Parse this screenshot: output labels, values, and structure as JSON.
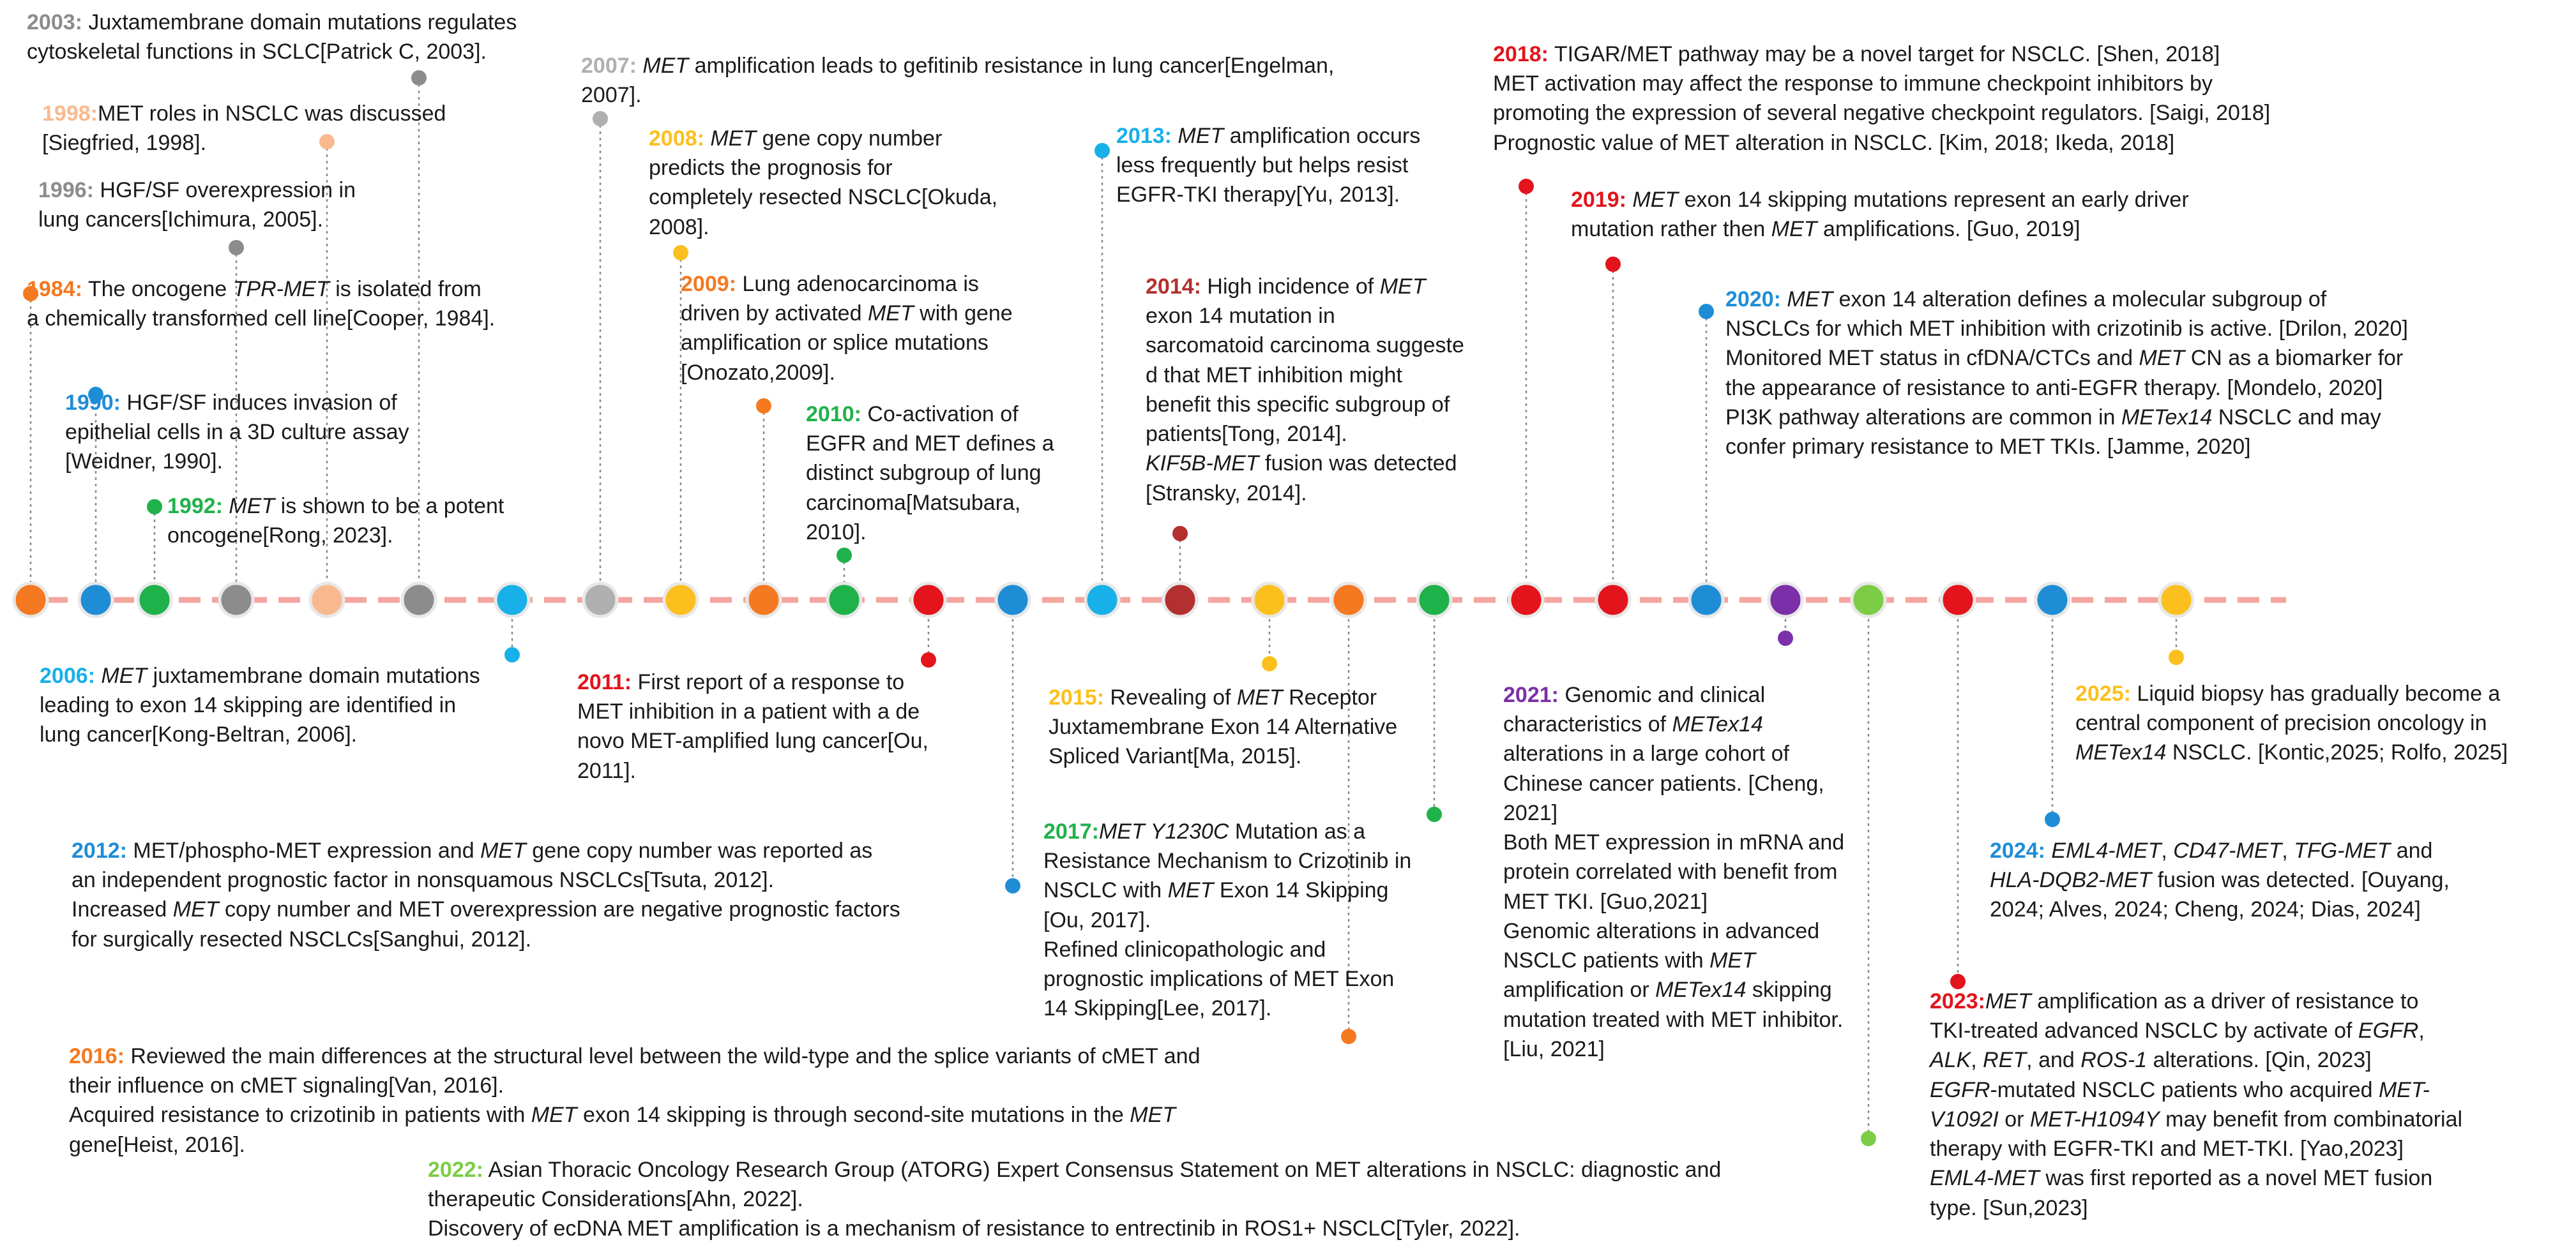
{
  "colors": {
    "axis": "#f4a5a0",
    "connector": "#8a8a8a",
    "orange": "#f47920",
    "blue": "#1f8dd6",
    "green": "#1fb24a",
    "gray": "#8c8c8c",
    "peach": "#f9b98f",
    "yellow": "#fcc01e",
    "red": "#e3141c",
    "darkred": "#b3302e",
    "cyan": "#18b0e8",
    "purple": "#7b2fa8",
    "lime": "#7ccd45",
    "lightgray": "#b0b0b0",
    "text": "#1a1a1a"
  },
  "events": [
    {
      "id": "e1984",
      "year": "1984:",
      "color": "orange",
      "lines": [
        "The oncogene <i>TPR-MET</i> is isolated from",
        "a chemically transformed cell line[Cooper, 1984]."
      ]
    },
    {
      "id": "e1990",
      "year": "1990:",
      "color": "blue",
      "lines": [
        "HGF/SF induces invasion of",
        "epithelial cells in a 3D culture assay",
        "[Weidner, 1990]."
      ]
    },
    {
      "id": "e1992",
      "year": "1992:",
      "color": "green",
      "lines": [
        "<i>MET</i> is shown to be a potent",
        "oncogene[Rong, 2023]."
      ]
    },
    {
      "id": "e1996",
      "year": "1996:",
      "color": "gray",
      "lines": [
        "HGF/SF overexpression in",
        "lung cancers[Ichimura, 2005]."
      ]
    },
    {
      "id": "e1998",
      "year": "1998:",
      "color": "peach",
      "lines": [
        "MET roles in NSCLC was discussed",
        "[Siegfried, 1998]."
      ]
    },
    {
      "id": "e2003",
      "year": "2003:",
      "color": "gray",
      "lines": [
        "Juxtamembrane domain mutations regulates",
        "cytoskeletal functions in SCLC[Patrick C, 2003]."
      ]
    },
    {
      "id": "e2006",
      "year": "2006:",
      "color": "cyan",
      "lines": [
        "<i>MET</i> juxtamembrane domain mutations",
        "leading to exon 14 skipping are identified in",
        "lung cancer[Kong-Beltran, 2006]."
      ]
    },
    {
      "id": "e2007",
      "year": "2007:",
      "color": "lightgray",
      "lines": [
        "<i>MET</i> amplification leads to gefitinib resistance in lung cancer[Engelman,",
        "2007]."
      ]
    },
    {
      "id": "e2008",
      "year": "2008:",
      "color": "yellow",
      "lines": [
        "<i>MET</i> gene copy number",
        "predicts the prognosis for",
        "completely resected NSCLC[Okuda,",
        "2008]."
      ]
    },
    {
      "id": "e2009",
      "year": "2009:",
      "color": "orange",
      "lines": [
        "Lung adenocarcinoma is",
        "driven by activated <i>MET</i> with gene",
        "amplification or splice mutations",
        "[Onozato,2009]."
      ]
    },
    {
      "id": "e2010",
      "year": "2010:",
      "color": "green",
      "lines": [
        "Co-activation of",
        "EGFR and MET defines a",
        "distinct subgroup of lung",
        "carcinoma[Matsubara,",
        "2010]."
      ]
    },
    {
      "id": "e2011",
      "year": "2011:",
      "color": "red",
      "lines": [
        "First report of a response to",
        "MET inhibition in a patient with a de",
        "novo MET-amplified lung cancer[Ou,",
        "2011]."
      ]
    },
    {
      "id": "e2012",
      "year": "2012:",
      "color": "blue",
      "lines": [
        "MET/phospho-MET expression and <i>MET</i> gene copy number was reported as",
        "an  independent prognostic factor in nonsquamous NSCLCs[Tsuta, 2012].",
        "Increased <i>MET</i> copy number and MET overexpression are negative prognostic factors",
        "for surgically resected NSCLCs[Sanghui, 2012]."
      ]
    },
    {
      "id": "e2013",
      "year": "2013:",
      "color": "cyan",
      "lines": [
        "<i>MET</i> amplification occurs",
        "less frequently but helps resist",
        "EGFR-TKI therapy[Yu, 2013]."
      ]
    },
    {
      "id": "e2014",
      "year": "2014:",
      "color": "darkred",
      "lines": [
        "High incidence of <i>MET</i>",
        "exon 14 mutation in",
        "sarcomatoid carcinoma suggeste",
        "d that MET inhibition might",
        "benefit  this specific subgroup of",
        "patients[Tong, 2014].",
        "<i>KIF5B-MET</i> fusion was detected",
        "[Stransky, 2014]."
      ]
    },
    {
      "id": "e2015",
      "year": "2015:",
      "color": "yellow",
      "lines": [
        "Revealing of <i>MET</i> Receptor",
        "Juxtamembrane Exon 14 Alternative",
        "Spliced Variant[Ma, 2015]."
      ]
    },
    {
      "id": "e2016",
      "year": "2016:",
      "color": "orange",
      "lines": [
        "Reviewed the main differences at the structural level between the wild-type and the splice variants of cMET and",
        "their influence on cMET signaling[Van, 2016].",
        "Acquired resistance to crizotinib in patients with <i>MET</i> exon 14 skipping is through second-site mutations in the <i>MET</i>",
        "gene[Heist, 2016]."
      ]
    },
    {
      "id": "e2017",
      "year": "2017:",
      "color": "green",
      "lines": [
        "<i>MET Y1230C</i> Mutation as a",
        "Resistance Mechanism to Crizotinib in",
        "NSCLC with <i>MET</i> Exon 14 Skipping",
        "[Ou, 2017].",
        "Refined clinicopathologic and",
        "prognostic implications of MET Exon",
        "14 Skipping[Lee, 2017]."
      ]
    },
    {
      "id": "e2018",
      "year": "2018:",
      "color": "red",
      "lines": [
        "TIGAR/MET pathway may be a novel target for NSCLC. [Shen, 2018]",
        "MET activation may affect the response to immune checkpoint inhibitors by",
        "promoting the expression of several negative checkpoint regulators. [Saigi, 2018]",
        "Prognostic value of MET alteration in NSCLC. [Kim, 2018; Ikeda, 2018]"
      ]
    },
    {
      "id": "e2019",
      "year": "2019:",
      "color": "red",
      "lines": [
        "<i>MET</i> exon 14 skipping mutations represent an early driver",
        "mutation rather then <i>MET</i> amplifications. [Guo, 2019]"
      ]
    },
    {
      "id": "e2020",
      "year": "2020:",
      "color": "blue",
      "lines": [
        "<i>MET</i> exon 14 alteration defines a molecular subgroup of",
        "NSCLCs for which MET inhibition with crizotinib is active. [Drilon, 2020]",
        "Monitored MET status in cfDNA/CTCs and <i>MET</i> CN as a biomarker for",
        "the appearance of resistance to anti-EGFR therapy. [Mondelo, 2020]",
        "PI3K pathway alterations are common in <i>METex14</i> NSCLC and may",
        "confer primary resistance to MET TKIs. [Jamme, 2020]"
      ]
    },
    {
      "id": "e2021",
      "year": "2021:",
      "color": "purple",
      "lines": [
        "Genomic and clinical",
        "characteristics of <i>METex14</i>",
        "alterations in a large cohort of",
        "Chinese cancer patients. [Cheng,",
        "2021]",
        "Both MET expression in mRNA and",
        "protein correlated with benefit from",
        "MET TKI. [Guo,2021]",
        "Genomic alterations in advanced",
        "NSCLC patients with <i>MET</i>",
        "amplification or <i>METex14</i> skipping",
        "mutation treated with MET inhibitor.",
        "[Liu, 2021]"
      ]
    },
    {
      "id": "e2022",
      "year": "2022:",
      "color": "lime",
      "lines": [
        "Asian Thoracic Oncology Research Group (ATORG) Expert Consensus Statement on MET alterations in NSCLC: diagnostic and",
        "therapeutic Considerations[Ahn, 2022].",
        "Discovery of ecDNA MET amplification is a mechanism of resistance to entrectinib in ROS1+ NSCLC[Tyler, 2022]."
      ]
    },
    {
      "id": "e2023",
      "year": "2023:",
      "color": "red",
      "lines": [
        "<i>MET</i> amplification as a driver of resistance to",
        "TKI-treated advanced NSCLC by activate of <i>EGFR</i>,",
        "<i>ALK</i>, <i>RET</i>, and <i>ROS-1</i> alterations. [Qin, 2023]",
        "<i>EGFR</i>-mutated NSCLC patients who acquired <i>MET-</i>",
        "<i>V1092I</i> or <i>MET-H1094Y</i> may benefit from combinatorial",
        "therapy with EGFR-TKI and MET-TKI. [Yao,2023]",
        "<i>EML4-MET</i> was first reported as a novel MET fusion",
        "type. [Sun,2023]"
      ]
    },
    {
      "id": "e2024",
      "year": "2024:",
      "color": "blue",
      "lines": [
        "<i>EML4-MET</i>, <i>CD47-MET</i>, <i>TFG-MET</i> and",
        "<i>HLA-DQB2-MET</i> fusion was detected. [Ouyang,",
        "2024; Alves, 2024; Cheng, 2024; Dias, 2024]"
      ]
    },
    {
      "id": "e2025",
      "year": "2025:",
      "color": "yellow",
      "lines": [
        "Liquid biopsy has gradually become a",
        "central component of precision oncology in",
        "<i>METex14</i> NSCLC. [Kontic,2025; Rolfo, 2025]"
      ]
    }
  ]
}
